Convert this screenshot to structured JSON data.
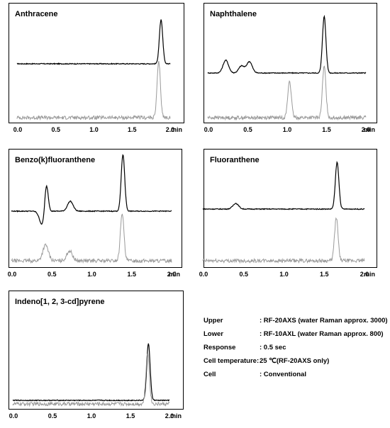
{
  "chart_data": [
    {
      "type": "line",
      "title": "Anthracene",
      "xlim": [
        0,
        2.0
      ],
      "x_ticks": [
        "0.0",
        "0.5",
        "1.0",
        "1.5",
        "2.0"
      ],
      "x_unit": "min",
      "series": [
        {
          "color": "#000000",
          "peaks": [
            {
              "x": 1.88,
              "height": 62
            }
          ],
          "shape": "flat baseline with slight bump near 0.5"
        },
        {
          "color": "#9a9a9a",
          "peaks": [
            {
              "x": 1.85,
              "height": 78
            }
          ],
          "shape": "noisy baseline"
        }
      ]
    },
    {
      "type": "line",
      "title": "Naphthalene",
      "xlim": [
        0,
        2.0
      ],
      "x_ticks": [
        "0.0",
        "0.5",
        "1.0",
        "1.5",
        "2.0"
      ],
      "x_unit": "min",
      "series": [
        {
          "color": "#000000",
          "peaks": [
            {
              "x": 0.22,
              "height": 18
            },
            {
              "x": 0.42,
              "height": 10
            },
            {
              "x": 0.52,
              "height": 16
            },
            {
              "x": 1.47,
              "height": 80
            }
          ]
        },
        {
          "color": "#9a9a9a",
          "peaks": [
            {
              "x": 1.03,
              "height": 52
            },
            {
              "x": 1.47,
              "height": 72
            }
          ],
          "shape": "noisy baseline"
        }
      ]
    },
    {
      "type": "line",
      "title": "Benzo(k)fluoranthene",
      "xlim": [
        0,
        2.0
      ],
      "x_ticks": [
        "0.0",
        "0.5",
        "1.0",
        "1.5",
        "2.0"
      ],
      "x_unit": "min",
      "series": [
        {
          "color": "#000000",
          "peaks": [
            {
              "x": 0.38,
              "height": -20
            },
            {
              "x": 0.43,
              "height": 42
            },
            {
              "x": 0.73,
              "height": 14
            },
            {
              "x": 1.39,
              "height": 80
            }
          ]
        },
        {
          "color": "#9a9a9a",
          "peaks": [
            {
              "x": 0.42,
              "height": 22
            },
            {
              "x": 0.72,
              "height": 14
            },
            {
              "x": 1.38,
              "height": 68
            }
          ]
        }
      ]
    },
    {
      "type": "line",
      "title": "Fluoranthene",
      "xlim": [
        0,
        2.0
      ],
      "x_ticks": [
        "0.0",
        "0.5",
        "1.0",
        "1.5",
        "2.0"
      ],
      "x_unit": "min",
      "series": [
        {
          "color": "#000000",
          "peaks": [
            {
              "x": 0.4,
              "height": 8
            },
            {
              "x": 1.66,
              "height": 66
            }
          ]
        },
        {
          "color": "#9a9a9a",
          "peaks": [
            {
              "x": 1.65,
              "height": 60
            }
          ]
        }
      ]
    },
    {
      "type": "line",
      "title": "Indeno[1, 2, 3-cd]pyrene",
      "xlim": [
        0,
        2.0
      ],
      "x_ticks": [
        "0.0",
        "0.5",
        "1.0",
        "1.5",
        "2.0"
      ],
      "x_unit": "min",
      "series": [
        {
          "color": "#000000",
          "peaks": [
            {
              "x": 1.73,
              "height": 80
            }
          ]
        },
        {
          "color": "#9a9a9a",
          "peaks": [
            {
              "x": 1.72,
              "height": 72
            }
          ]
        }
      ]
    }
  ],
  "conditions": [
    {
      "label": "Upper",
      "value": ": RF-20AXS (water Raman approx. 3000)"
    },
    {
      "label": "Lower",
      "value": ": RF-10AXL (water Raman approx. 800)"
    },
    {
      "label": "Response",
      "value": ":  0.5 sec"
    },
    {
      "label": "Cell temperature:",
      "value": " 25 ℃(RF-20AXS only)"
    },
    {
      "label": "Cell",
      "value": ":  Conventional"
    }
  ]
}
